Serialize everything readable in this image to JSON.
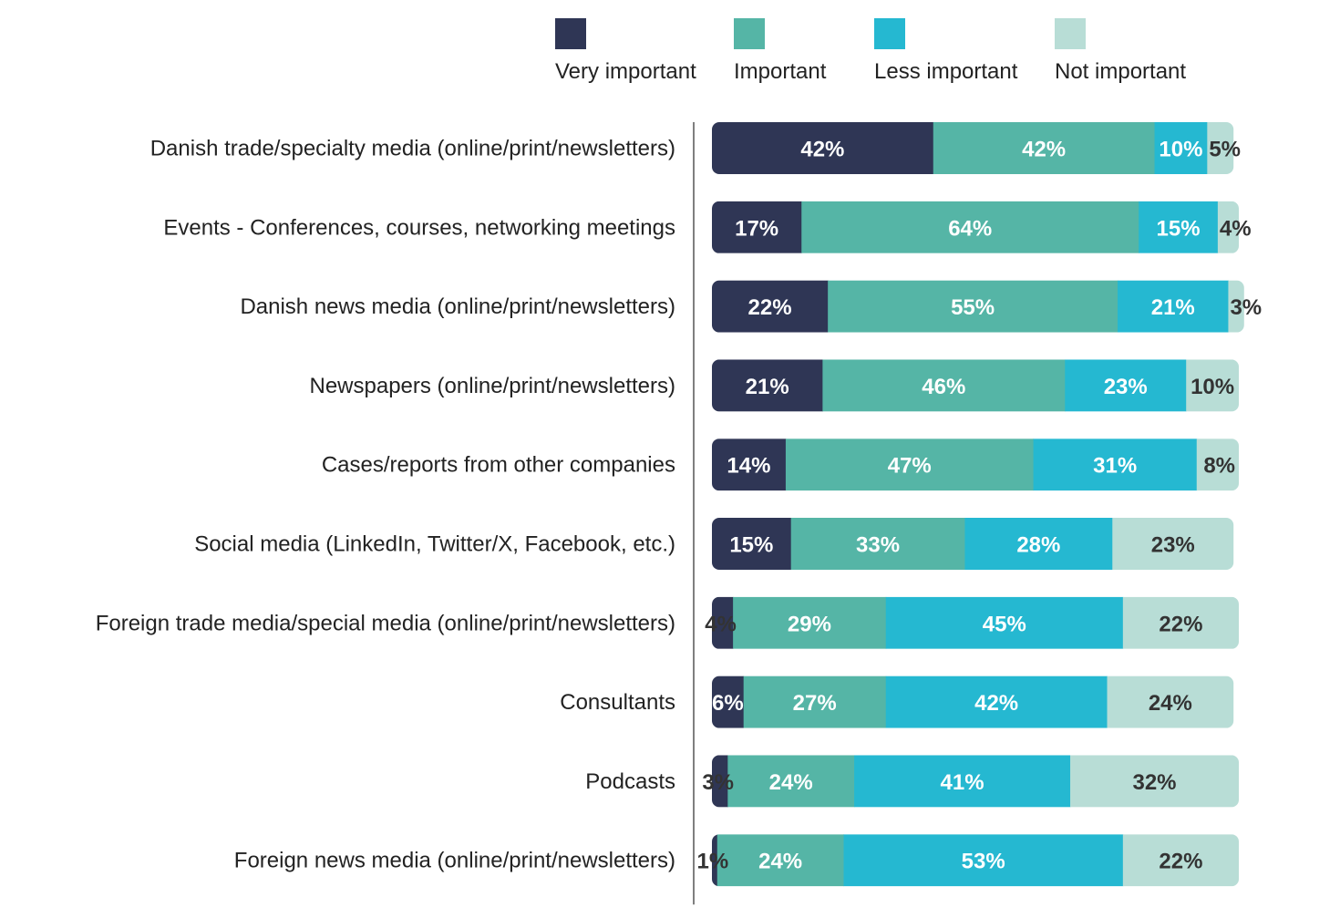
{
  "chart_data": {
    "type": "bar",
    "orientation": "horizontal",
    "stacked": true,
    "title": "",
    "xlabel": "",
    "ylabel": "",
    "xlim": [
      0,
      100
    ],
    "grid": false,
    "legend_position": "top",
    "categories": [
      "Danish trade/specialty media (online/print/newsletters)",
      "Events - Conferences, courses, networking meetings",
      "Danish news media (online/print/newsletters)",
      "Newspapers (online/print/newsletters)",
      "Cases/reports from other companies",
      "Social media (LinkedIn, Twitter/X, Facebook, etc.)",
      "Foreign trade media/special media (online/print/newsletters)",
      "Consultants",
      "Podcasts",
      "Foreign news media (online/print/newsletters)"
    ],
    "series": [
      {
        "name": "Very important",
        "color": "#2f3655",
        "label_color": "#ffffff",
        "values": [
          42,
          17,
          22,
          21,
          14,
          15,
          4,
          6,
          3,
          1
        ]
      },
      {
        "name": "Important",
        "color": "#55b5a6",
        "label_color": "#ffffff",
        "values": [
          42,
          64,
          55,
          46,
          47,
          33,
          29,
          27,
          24,
          24
        ]
      },
      {
        "name": "Less important",
        "color": "#25b8d1",
        "label_color": "#ffffff",
        "values": [
          10,
          15,
          21,
          23,
          31,
          28,
          45,
          42,
          41,
          53
        ]
      },
      {
        "name": "Not important",
        "color": "#b8ddd6",
        "label_color": "#333333",
        "values": [
          5,
          4,
          3,
          10,
          8,
          23,
          22,
          24,
          32,
          22
        ]
      }
    ],
    "value_suffix": "%"
  }
}
